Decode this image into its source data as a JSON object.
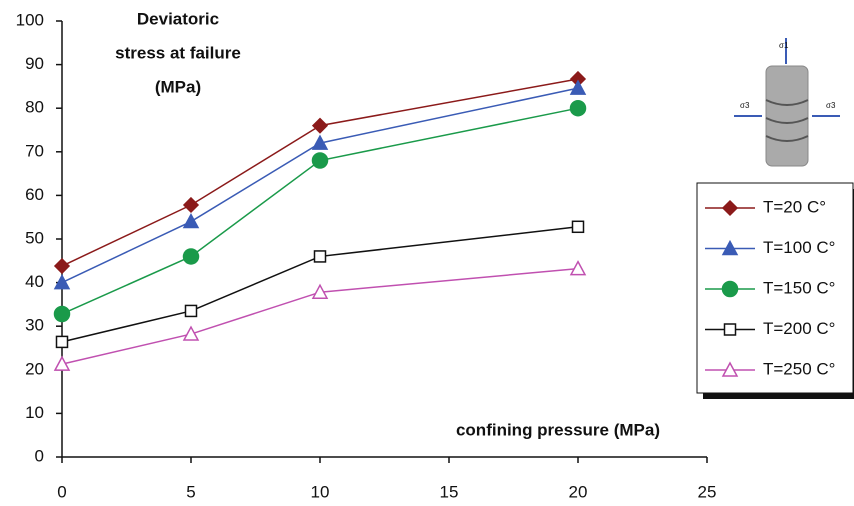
{
  "chart_data": {
    "type": "line",
    "y_label": [
      "Deviatoric",
      "stress at failure",
      "(MPa)"
    ],
    "x_label": "confining pressure (MPa)",
    "specimen_labels": [
      "σ1",
      "σ3",
      "σ3"
    ],
    "x": [
      0,
      5,
      10,
      20
    ],
    "xlim": [
      0,
      25
    ],
    "xticks": [
      0,
      5,
      10,
      15,
      20,
      25
    ],
    "ylim": [
      0,
      100
    ],
    "yticks": [
      0,
      10,
      20,
      30,
      40,
      50,
      60,
      70,
      80,
      90,
      100
    ],
    "grid": false,
    "legend": "right",
    "series": [
      {
        "name": "T=20 C°",
        "color": "#8b1a1a",
        "marker": "diamond",
        "filled": true,
        "values": [
          43.8,
          57.8,
          76,
          86.7
        ]
      },
      {
        "name": "T=100 C°",
        "color": "#3a5bb5",
        "marker": "triangle",
        "filled": true,
        "values": [
          40,
          54,
          72,
          84.6
        ]
      },
      {
        "name": "T=150 C°",
        "color": "#1a9a4a",
        "marker": "circle",
        "filled": true,
        "values": [
          32.8,
          46,
          68,
          80
        ]
      },
      {
        "name": "T=200 C°",
        "color": "#111111",
        "marker": "square",
        "filled": false,
        "values": [
          26.4,
          33.5,
          46,
          52.8
        ]
      },
      {
        "name": "T=250 C°",
        "color": "#c050b0",
        "marker": "triangle",
        "filled": false,
        "values": [
          21.3,
          28.2,
          37.8,
          43.2
        ]
      }
    ]
  }
}
